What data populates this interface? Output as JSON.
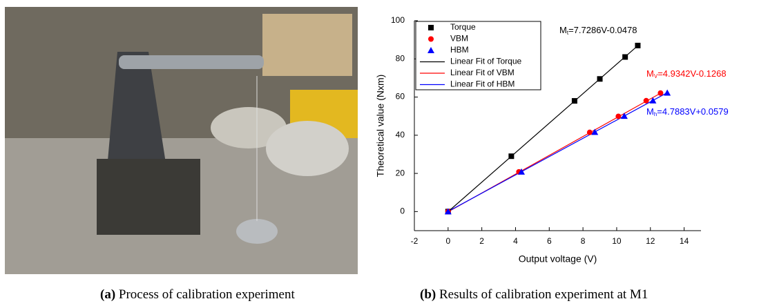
{
  "captions": [
    {
      "label": "(a)",
      "text": "Process of calibration experiment"
    },
    {
      "label": "(b)",
      "text": "Results of calibration experiment at M1"
    }
  ],
  "chart_data": {
    "type": "scatter",
    "x_label": "Output voltage (V)",
    "y_label": "Theoretical value (Nxm)",
    "xlim": [
      -2,
      15
    ],
    "ylim": [
      -10,
      100
    ],
    "xticks": [
      -2,
      0,
      2,
      4,
      6,
      8,
      10,
      12,
      14
    ],
    "yticks": [
      0,
      20,
      40,
      60,
      80,
      100
    ],
    "series": [
      {
        "name": "Torque",
        "color": "#000000",
        "marker": "square",
        "x": [
          0,
          3.75,
          7.5,
          9.0,
          10.5,
          11.25
        ],
        "values": [
          0,
          29,
          58,
          69.5,
          81,
          87
        ]
      },
      {
        "name": "VBM",
        "color": "#ff0000",
        "marker": "circle",
        "x": [
          0,
          4.2,
          8.4,
          10.1,
          11.75,
          12.6
        ],
        "values": [
          0,
          20.8,
          41.5,
          49.9,
          58.1,
          62.1
        ]
      },
      {
        "name": "HBM",
        "color": "#0000ff",
        "marker": "triangle",
        "x": [
          0,
          4.35,
          8.7,
          10.45,
          12.15,
          13.0
        ],
        "values": [
          0,
          20.8,
          41.6,
          50,
          58.1,
          62.2
        ]
      }
    ],
    "fits": [
      {
        "name": "Linear Fit of Torque",
        "color": "#000000",
        "x": [
          0,
          11.25
        ],
        "values": [
          -0.05,
          86.9
        ]
      },
      {
        "name": "Linear Fit of VBM",
        "color": "#ff0000",
        "x": [
          0,
          12.6
        ],
        "values": [
          -0.13,
          62.0
        ]
      },
      {
        "name": "Linear Fit of HBM",
        "color": "#0000ff",
        "x": [
          0,
          13.0
        ],
        "values": [
          0.06,
          62.3
        ]
      }
    ],
    "annotations": [
      {
        "text": "M",
        "sub": "t",
        "rest": "=7.7286V-0.0478",
        "color": "#000000"
      },
      {
        "text": "M",
        "sub": "V",
        "rest": "=4.9342V-0.1268",
        "color": "#ff0000"
      },
      {
        "text": "M",
        "sub": "h",
        "rest": "=4.7883V+0.0579",
        "color": "#0000ff"
      }
    ]
  }
}
